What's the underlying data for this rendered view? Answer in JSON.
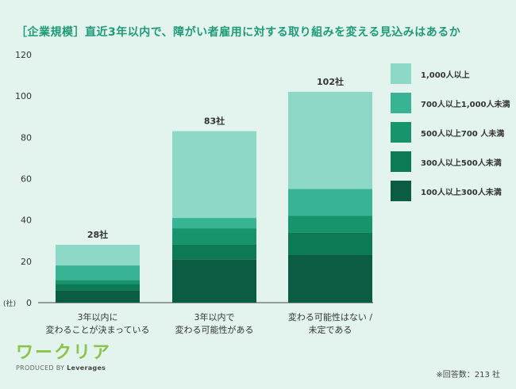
{
  "title": "［企業規模］直近3年以内で、障がい者雇用に対する取り組みを変える見込みはあるか",
  "colors": {
    "background": "#e3f4ef",
    "title": "#1f9a77",
    "series": [
      "#0a5c43",
      "#0d7a56",
      "#17946c",
      "#38b495",
      "#8dd8c7"
    ]
  },
  "brand": {
    "logo": "ワークリア",
    "produced_by": "PRODUCED BY",
    "company": "Leverages"
  },
  "footnote": "※回答数：213 社",
  "chart_data": {
    "type": "bar",
    "stacked": true,
    "categories": [
      [
        "3年以内に",
        "変わることが決まっている"
      ],
      [
        "3年以内で",
        "変わる可能性がある"
      ],
      [
        "変わる可能性はない /",
        "未定である"
      ]
    ],
    "totals": [
      "28社",
      "83社",
      "102社"
    ],
    "series": [
      {
        "name": "100人以上300人未満",
        "values": [
          6,
          21,
          23
        ]
      },
      {
        "name": "300人以上500人未満",
        "values": [
          3,
          7,
          11
        ]
      },
      {
        "name": "500人以上700 人未満",
        "values": [
          2,
          8,
          8
        ]
      },
      {
        "name": "700人以上1,000人未満",
        "values": [
          7,
          5,
          13
        ]
      },
      {
        "name": "1,000人以上",
        "values": [
          10,
          42,
          47
        ]
      }
    ],
    "ylim": [
      0,
      120
    ],
    "yticks": [
      0,
      20,
      40,
      60,
      80,
      100,
      120
    ],
    "ylabel": "(社)",
    "grid": false,
    "legend": "right"
  }
}
